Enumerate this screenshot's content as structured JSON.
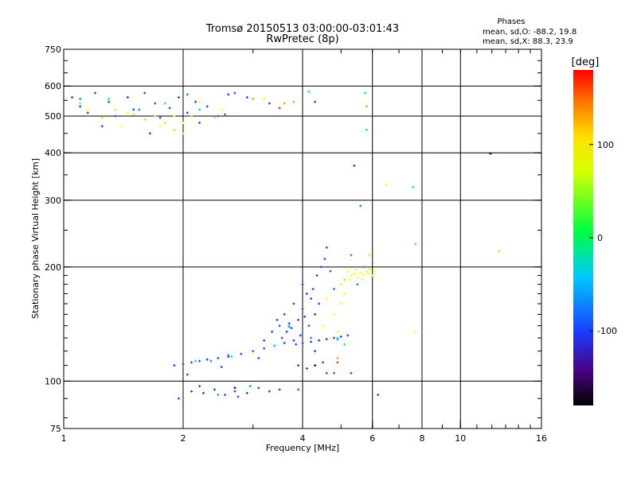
{
  "chart_data": {
    "type": "scatter",
    "title": "Tromsø 20150513 03:00:00-03:01:43",
    "subtitle": "RwPretec (8p)",
    "xlabel": "Frequency [MHz]",
    "ylabel": "Stationary phase Virtual Height [km]",
    "x_scale": "log",
    "y_scale": "log",
    "xlim": [
      1,
      16
    ],
    "ylim": [
      75,
      750
    ],
    "x_ticks": [
      1,
      2,
      4,
      6,
      8,
      10,
      16
    ],
    "y_ticks": [
      75,
      100,
      200,
      300,
      400,
      500,
      600,
      750
    ],
    "x_grid": [
      2,
      4,
      6,
      8,
      10
    ],
    "y_grid": [
      100,
      200,
      300,
      400,
      500,
      600
    ],
    "grid": true,
    "legend": {
      "heading": "Phases",
      "lines": [
        "mean, sd,O: -88.2, 19.8",
        "mean, sd,X:  88.3, 23.9"
      ],
      "placement": "top-right"
    },
    "colorbar": {
      "label": "[deg]",
      "ticks": [
        {
          "value": 100,
          "label": "100"
        },
        {
          "value": 0,
          "label": "0"
        },
        {
          "value": -100,
          "label": "-100"
        }
      ],
      "range": [
        -180,
        180
      ],
      "placement": "right"
    },
    "series": [
      {
        "phase_deg": -100,
        "color": "#1a3cff",
        "points": [
          [
            1.05,
            560
          ],
          [
            1.1,
            530
          ],
          [
            1.15,
            510
          ],
          [
            1.2,
            575
          ],
          [
            1.3,
            545
          ],
          [
            1.35,
            500
          ],
          [
            1.45,
            560
          ],
          [
            1.5,
            520
          ],
          [
            1.6,
            575
          ],
          [
            1.7,
            540
          ],
          [
            1.75,
            495
          ],
          [
            1.85,
            525
          ],
          [
            1.95,
            560
          ],
          [
            2.05,
            510
          ],
          [
            2.15,
            545
          ],
          [
            2.3,
            530
          ],
          [
            2.45,
            500
          ],
          [
            2.6,
            570
          ],
          [
            2.7,
            575
          ],
          [
            2.9,
            560
          ],
          [
            3.3,
            540
          ],
          [
            4.3,
            545
          ],
          [
            5.4,
            370
          ],
          [
            1.25,
            470
          ],
          [
            1.65,
            450
          ],
          [
            2.2,
            480
          ],
          [
            1.9,
            110
          ],
          [
            2.0,
            111
          ],
          [
            2.1,
            112
          ],
          [
            2.2,
            113
          ],
          [
            2.3,
            114
          ],
          [
            2.45,
            115
          ],
          [
            2.6,
            116
          ],
          [
            2.8,
            118
          ],
          [
            3.0,
            120
          ],
          [
            3.2,
            122
          ],
          [
            3.4,
            124
          ],
          [
            3.6,
            126
          ],
          [
            3.8,
            128
          ],
          [
            2.05,
            104
          ],
          [
            2.5,
            109
          ],
          [
            3.1,
            115
          ],
          [
            2.1,
            94
          ],
          [
            2.25,
            93
          ],
          [
            2.4,
            95
          ],
          [
            2.55,
            92
          ],
          [
            2.7,
            94
          ],
          [
            2.9,
            93
          ],
          [
            3.1,
            96
          ],
          [
            3.3,
            94
          ],
          [
            2.2,
            97
          ],
          [
            2.75,
            91
          ],
          [
            3.5,
            95
          ],
          [
            1.95,
            90
          ],
          [
            3.2,
            128
          ],
          [
            3.35,
            135
          ],
          [
            3.5,
            140
          ],
          [
            3.6,
            150
          ],
          [
            3.7,
            142
          ],
          [
            3.8,
            160
          ],
          [
            3.9,
            145
          ],
          [
            4.0,
            155
          ],
          [
            4.1,
            170
          ],
          [
            4.2,
            165
          ],
          [
            4.3,
            150
          ],
          [
            3.55,
            130
          ],
          [
            3.75,
            138
          ],
          [
            3.95,
            132
          ],
          [
            4.05,
            148
          ],
          [
            4.25,
            175
          ],
          [
            4.35,
            190
          ],
          [
            4.45,
            200
          ],
          [
            4.55,
            210
          ],
          [
            4.7,
            195
          ],
          [
            3.85,
            125
          ],
          [
            4.15,
            140
          ],
          [
            3.65,
            135
          ],
          [
            3.45,
            145
          ],
          [
            4.0,
            180
          ],
          [
            4.4,
            160
          ],
          [
            4.6,
            225
          ],
          [
            4.0,
            126
          ],
          [
            4.2,
            127
          ],
          [
            4.4,
            128
          ],
          [
            4.6,
            129
          ],
          [
            4.8,
            130
          ],
          [
            5.0,
            131
          ],
          [
            5.2,
            132
          ],
          [
            4.3,
            120
          ],
          [
            4.5,
            112
          ],
          [
            4.1,
            108
          ],
          [
            4.6,
            105
          ],
          [
            3.9,
            110
          ],
          [
            5.3,
            105
          ],
          [
            6.2,
            92
          ]
        ]
      },
      {
        "phase_deg": -70,
        "color": "#0088ff",
        "points": [
          [
            1.1,
            555
          ],
          [
            1.55,
            520
          ],
          [
            2.05,
            570
          ],
          [
            2.55,
            505
          ],
          [
            3.0,
            120
          ],
          [
            2.6,
            117
          ],
          [
            3.7,
            139
          ],
          [
            4.2,
            130
          ],
          [
            4.9,
            129
          ],
          [
            5.5,
            180
          ],
          [
            5.7,
            200
          ],
          [
            5.3,
            215
          ],
          [
            2.35,
            113
          ],
          [
            2.95,
            97
          ],
          [
            2.45,
            92
          ],
          [
            5.6,
            290
          ],
          [
            4.8,
            175
          ]
        ]
      },
      {
        "phase_deg": -20,
        "color": "#00d8e0",
        "points": [
          [
            1.3,
            555
          ],
          [
            1.8,
            540
          ],
          [
            2.2,
            520
          ],
          [
            4.15,
            580
          ],
          [
            5.75,
            575
          ],
          [
            5.8,
            460
          ],
          [
            7.6,
            325
          ],
          [
            2.15,
            113
          ],
          [
            2.65,
            116
          ],
          [
            3.4,
            124
          ],
          [
            4.9,
            130
          ],
          [
            5.1,
            125
          ],
          [
            3.7,
            140
          ]
        ]
      },
      {
        "phase_deg": 60,
        "color": "#9bff1a",
        "points": [
          [
            1.1,
            540
          ],
          [
            1.25,
            495
          ],
          [
            1.5,
            505
          ],
          [
            1.7,
            500
          ],
          [
            1.9,
            460
          ],
          [
            2.0,
            450
          ],
          [
            2.1,
            500
          ],
          [
            1.8,
            480
          ],
          [
            1.6,
            490
          ],
          [
            2.4,
            495
          ],
          [
            1.35,
            520
          ],
          [
            5.9,
            215
          ],
          [
            12.5,
            220
          ],
          [
            5.1,
            185
          ],
          [
            5.3,
            190
          ]
        ]
      },
      {
        "phase_deg": 100,
        "color": "#ffff00",
        "points": [
          [
            1.15,
            520
          ],
          [
            1.45,
            510
          ],
          [
            1.75,
            470
          ],
          [
            1.9,
            500
          ],
          [
            2.0,
            480
          ],
          [
            2.2,
            545
          ],
          [
            2.5,
            520
          ],
          [
            3.2,
            555
          ],
          [
            1.4,
            470
          ],
          [
            5.2,
            195
          ],
          [
            5.3,
            190
          ],
          [
            5.4,
            192
          ],
          [
            5.5,
            188
          ],
          [
            5.6,
            193
          ],
          [
            5.7,
            191
          ],
          [
            5.8,
            195
          ],
          [
            5.9,
            197
          ],
          [
            6.0,
            190
          ],
          [
            5.25,
            185
          ],
          [
            5.45,
            197
          ],
          [
            5.65,
            186
          ],
          [
            5.85,
            192
          ],
          [
            6.1,
            195
          ],
          [
            4.6,
            165
          ],
          [
            4.8,
            150
          ],
          [
            4.5,
            140
          ],
          [
            4.7,
            130
          ],
          [
            5.0,
            160
          ],
          [
            4.9,
            135
          ],
          [
            5.1,
            170
          ],
          [
            5.0,
            180
          ],
          [
            6.5,
            330
          ],
          [
            7.7,
            135
          ]
        ]
      },
      {
        "phase_deg": 140,
        "color": "#ff9a00",
        "points": [
          [
            3.0,
            555
          ],
          [
            3.6,
            540
          ],
          [
            3.8,
            545
          ],
          [
            5.8,
            530
          ],
          [
            7.7,
            230
          ],
          [
            4.9,
            115
          ]
        ]
      },
      {
        "phase_deg": 175,
        "color": "#ff2020",
        "points": [
          [
            3.5,
            525
          ],
          [
            4.8,
            105
          ],
          [
            4.9,
            112
          ],
          [
            3.9,
            95
          ]
        ]
      },
      {
        "phase_deg": -160,
        "color": "#000080",
        "points": [
          [
            11.9,
            398
          ],
          [
            4.3,
            110
          ],
          [
            2.7,
            96
          ]
        ]
      }
    ]
  }
}
